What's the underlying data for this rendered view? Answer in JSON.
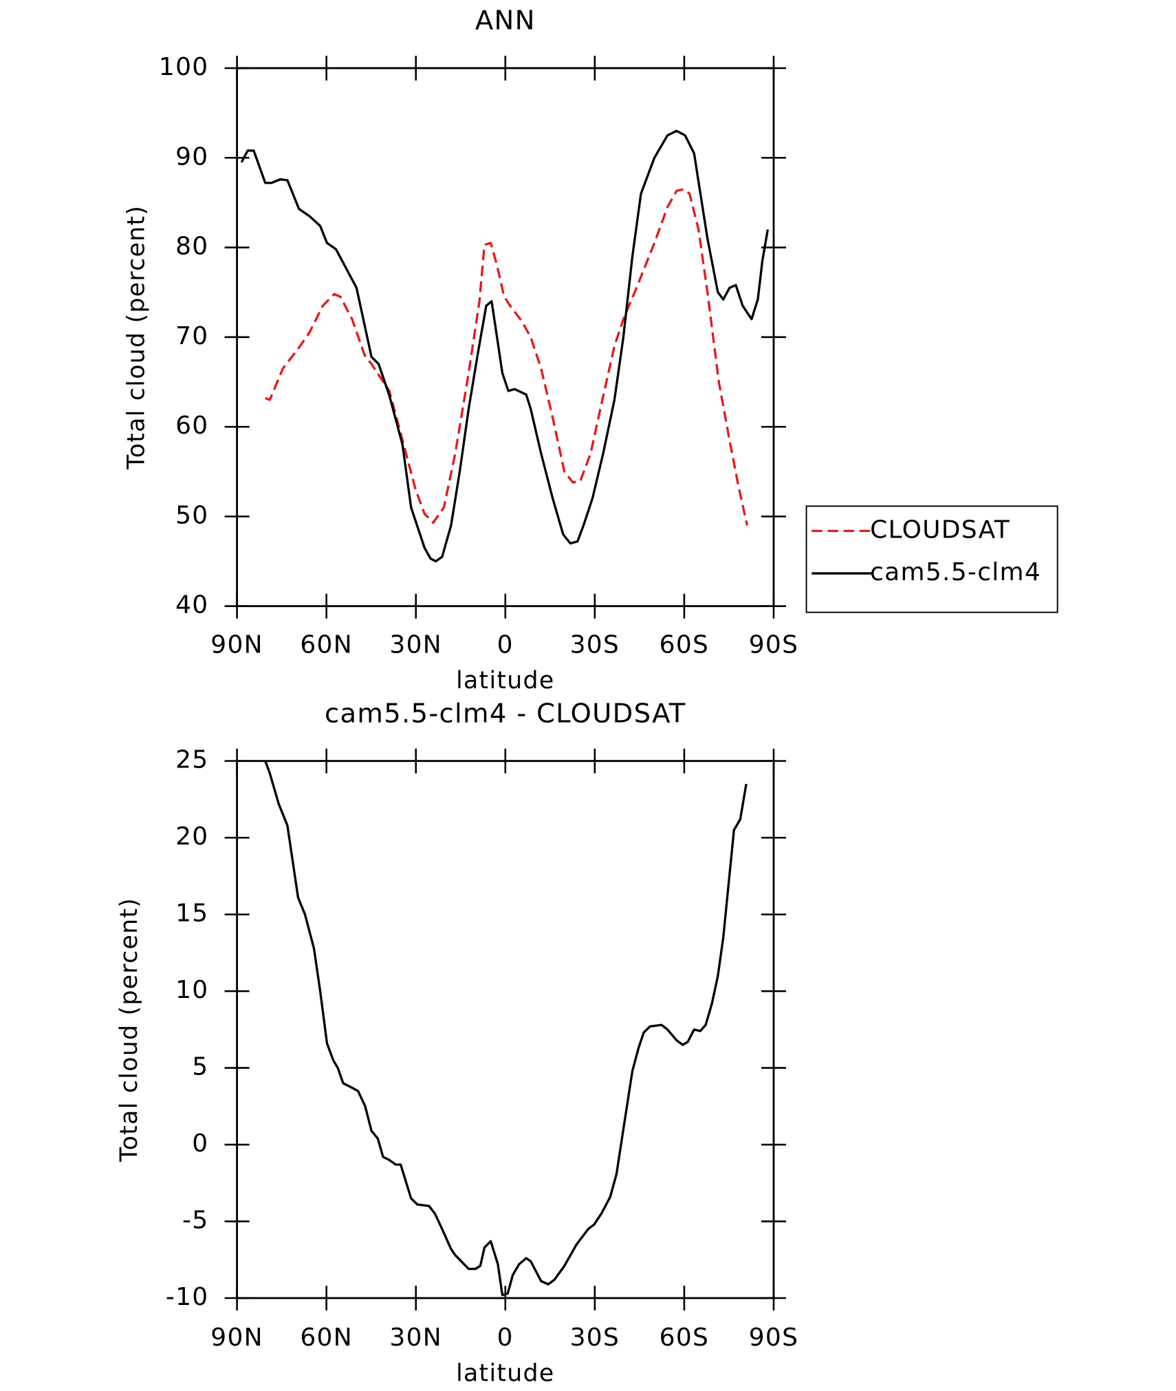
{
  "chart_data": [
    {
      "type": "line",
      "title": "ANN",
      "xlabel": "latitude",
      "ylabel": "Total cloud (percent)",
      "xlim": [
        90,
        -90
      ],
      "xticks": [
        {
          "value": 90,
          "label": "90N"
        },
        {
          "value": 60,
          "label": "60N"
        },
        {
          "value": 30,
          "label": "30N"
        },
        0,
        {
          "value": -30,
          "label": "30S"
        },
        {
          "value": -60,
          "label": "60S"
        },
        {
          "value": -90,
          "label": "90S"
        }
      ],
      "ylim": [
        40,
        100
      ],
      "yticks": [
        40,
        50,
        60,
        70,
        80,
        90,
        100
      ],
      "legend": "right",
      "series": [
        {
          "name": "CLOUDSAT",
          "color": "#e41a1c",
          "line_style": "dashed",
          "x": [
            80.5,
            79,
            74.6,
            69.5,
            65.7,
            61.2,
            57.4,
            55.3,
            51.4,
            47.2,
            44.9,
            38.9,
            34.5,
            30.1,
            27.1,
            24.2,
            20.6,
            16.8,
            12.3,
            8.7,
            7,
            4.9,
            2.8,
            0.4,
            -1.6,
            -5.5,
            -8.5,
            -12,
            -15.9,
            -19.8,
            -22.7,
            -25.1,
            -28.6,
            -32.2,
            -36.6,
            -39.6,
            -44,
            -50,
            -54.4,
            -57.4,
            -59.8,
            -61.8,
            -64.8,
            -67.8,
            -71.6,
            -75.2,
            -78.1,
            -81.1
          ],
          "values": [
            63.2,
            63,
            66.5,
            68.7,
            70.5,
            73.5,
            74.8,
            74.5,
            72,
            68,
            67,
            64,
            58.5,
            53,
            50.3,
            49.3,
            51,
            57,
            66,
            74,
            80.3,
            80.5,
            78,
            74.5,
            73.5,
            71.8,
            70,
            66.5,
            61,
            55,
            53.8,
            53.9,
            57,
            62.5,
            69,
            72,
            75.5,
            80.5,
            84.5,
            86.3,
            86.5,
            86,
            82,
            75,
            65,
            58.5,
            53.5,
            49
          ]
        },
        {
          "name": "cam5.5-clm4",
          "color": "#000000",
          "line_style": "solid",
          "x": [
            88.5,
            86.4,
            84.4,
            80.5,
            78.4,
            75.5,
            73.1,
            69.2,
            65.7,
            62.1,
            59.8,
            56.8,
            52.3,
            49.9,
            44.9,
            42.5,
            38.9,
            34.5,
            31.6,
            27.1,
            25.1,
            23.3,
            21.2,
            18.2,
            15.3,
            12.3,
            9.3,
            6.4,
            4.6,
            2.8,
            1,
            -1,
            -3.1,
            -7,
            -8.5,
            -12,
            -15.9,
            -19.4,
            -21.8,
            -24.2,
            -26.2,
            -29.2,
            -32.8,
            -36.6,
            -39.6,
            -42.6,
            -45.5,
            -50,
            -54.4,
            -57.4,
            -60.3,
            -63.3,
            -67.8,
            -71.3,
            -73.1,
            -75.2,
            -77.3,
            -79.6,
            -82.6,
            -84.7,
            -86.2,
            -88
          ],
          "values": [
            89.5,
            90.8,
            90.8,
            87.2,
            87.2,
            87.6,
            87.5,
            84.3,
            83.5,
            82.4,
            80.5,
            79.8,
            77,
            75.5,
            67.8,
            67,
            63.5,
            58,
            51,
            46.5,
            45.3,
            45,
            45.5,
            49,
            55,
            62,
            68,
            73.5,
            74,
            70,
            66,
            64,
            64.2,
            63.6,
            62,
            57,
            52,
            48,
            47,
            47.2,
            49,
            52,
            57,
            63,
            70,
            79,
            86,
            90,
            92.5,
            93,
            92.5,
            90.5,
            81,
            75,
            74.2,
            75.5,
            75.8,
            73.5,
            72,
            74.2,
            78.5,
            82
          ]
        }
      ]
    },
    {
      "type": "line",
      "title": "cam5.5-clm4 - CLOUDSAT",
      "xlabel": "latitude",
      "ylabel": "Total cloud (percent)",
      "xlim": [
        90,
        -90
      ],
      "xticks": [
        {
          "value": 90,
          "label": "90N"
        },
        {
          "value": 60,
          "label": "60N"
        },
        {
          "value": 30,
          "label": "30N"
        },
        0,
        {
          "value": -30,
          "label": "30S"
        },
        {
          "value": -60,
          "label": "60S"
        },
        {
          "value": -90,
          "label": "90S"
        }
      ],
      "ylim": [
        -10,
        25
      ],
      "yticks": [
        -10,
        -5,
        0,
        5,
        10,
        15,
        20,
        25
      ],
      "series": [
        {
          "color": "#000000",
          "line_style": "solid",
          "x": [
            80.5,
            79,
            76,
            73.1,
            69.5,
            67.2,
            64.2,
            62.1,
            59.8,
            57.7,
            56.2,
            54.4,
            52.3,
            49.4,
            47,
            44.9,
            42.8,
            41,
            38.9,
            36.8,
            35.1,
            31.6,
            29.5,
            25.6,
            23.6,
            21.2,
            18.2,
            16.8,
            12.3,
            10,
            8.4,
            7,
            4.9,
            2.5,
            1,
            -0.8,
            -2.5,
            -4.6,
            -7,
            -8.5,
            -12,
            -14.4,
            -16.5,
            -19.8,
            -23.9,
            -27.8,
            -29.8,
            -32.2,
            -35.2,
            -37.3,
            -39.6,
            -42.6,
            -44.7,
            -46.4,
            -48.5,
            -52.4,
            -54.4,
            -57.4,
            -59.5,
            -61.2,
            -63.3,
            -65.4,
            -67.2,
            -69.3,
            -71.3,
            -73.1,
            -75.2,
            -76.7,
            -78.8,
            -80.8
          ],
          "values": [
            25,
            24.2,
            22.2,
            20.8,
            16.1,
            15,
            12.8,
            10,
            6.6,
            5.5,
            5,
            4,
            3.8,
            3.5,
            2.5,
            0.9,
            0.4,
            -0.8,
            -1,
            -1.3,
            -1.3,
            -3.5,
            -3.9,
            -4,
            -4.5,
            -5.5,
            -6.8,
            -7.2,
            -8.1,
            -8.1,
            -7.9,
            -6.7,
            -6.3,
            -7.8,
            -9.8,
            -9.7,
            -8.5,
            -7.8,
            -7.4,
            -7.6,
            -8.9,
            -9.1,
            -8.8,
            -7.9,
            -6.5,
            -5.5,
            -5.2,
            -4.5,
            -3.4,
            -1.9,
            1,
            4.8,
            6.3,
            7.3,
            7.7,
            7.8,
            7.5,
            6.8,
            6.5,
            6.7,
            7.5,
            7.4,
            7.8,
            9.2,
            11,
            13.5,
            17.6,
            20.5,
            21.2,
            23.5
          ]
        }
      ]
    }
  ]
}
